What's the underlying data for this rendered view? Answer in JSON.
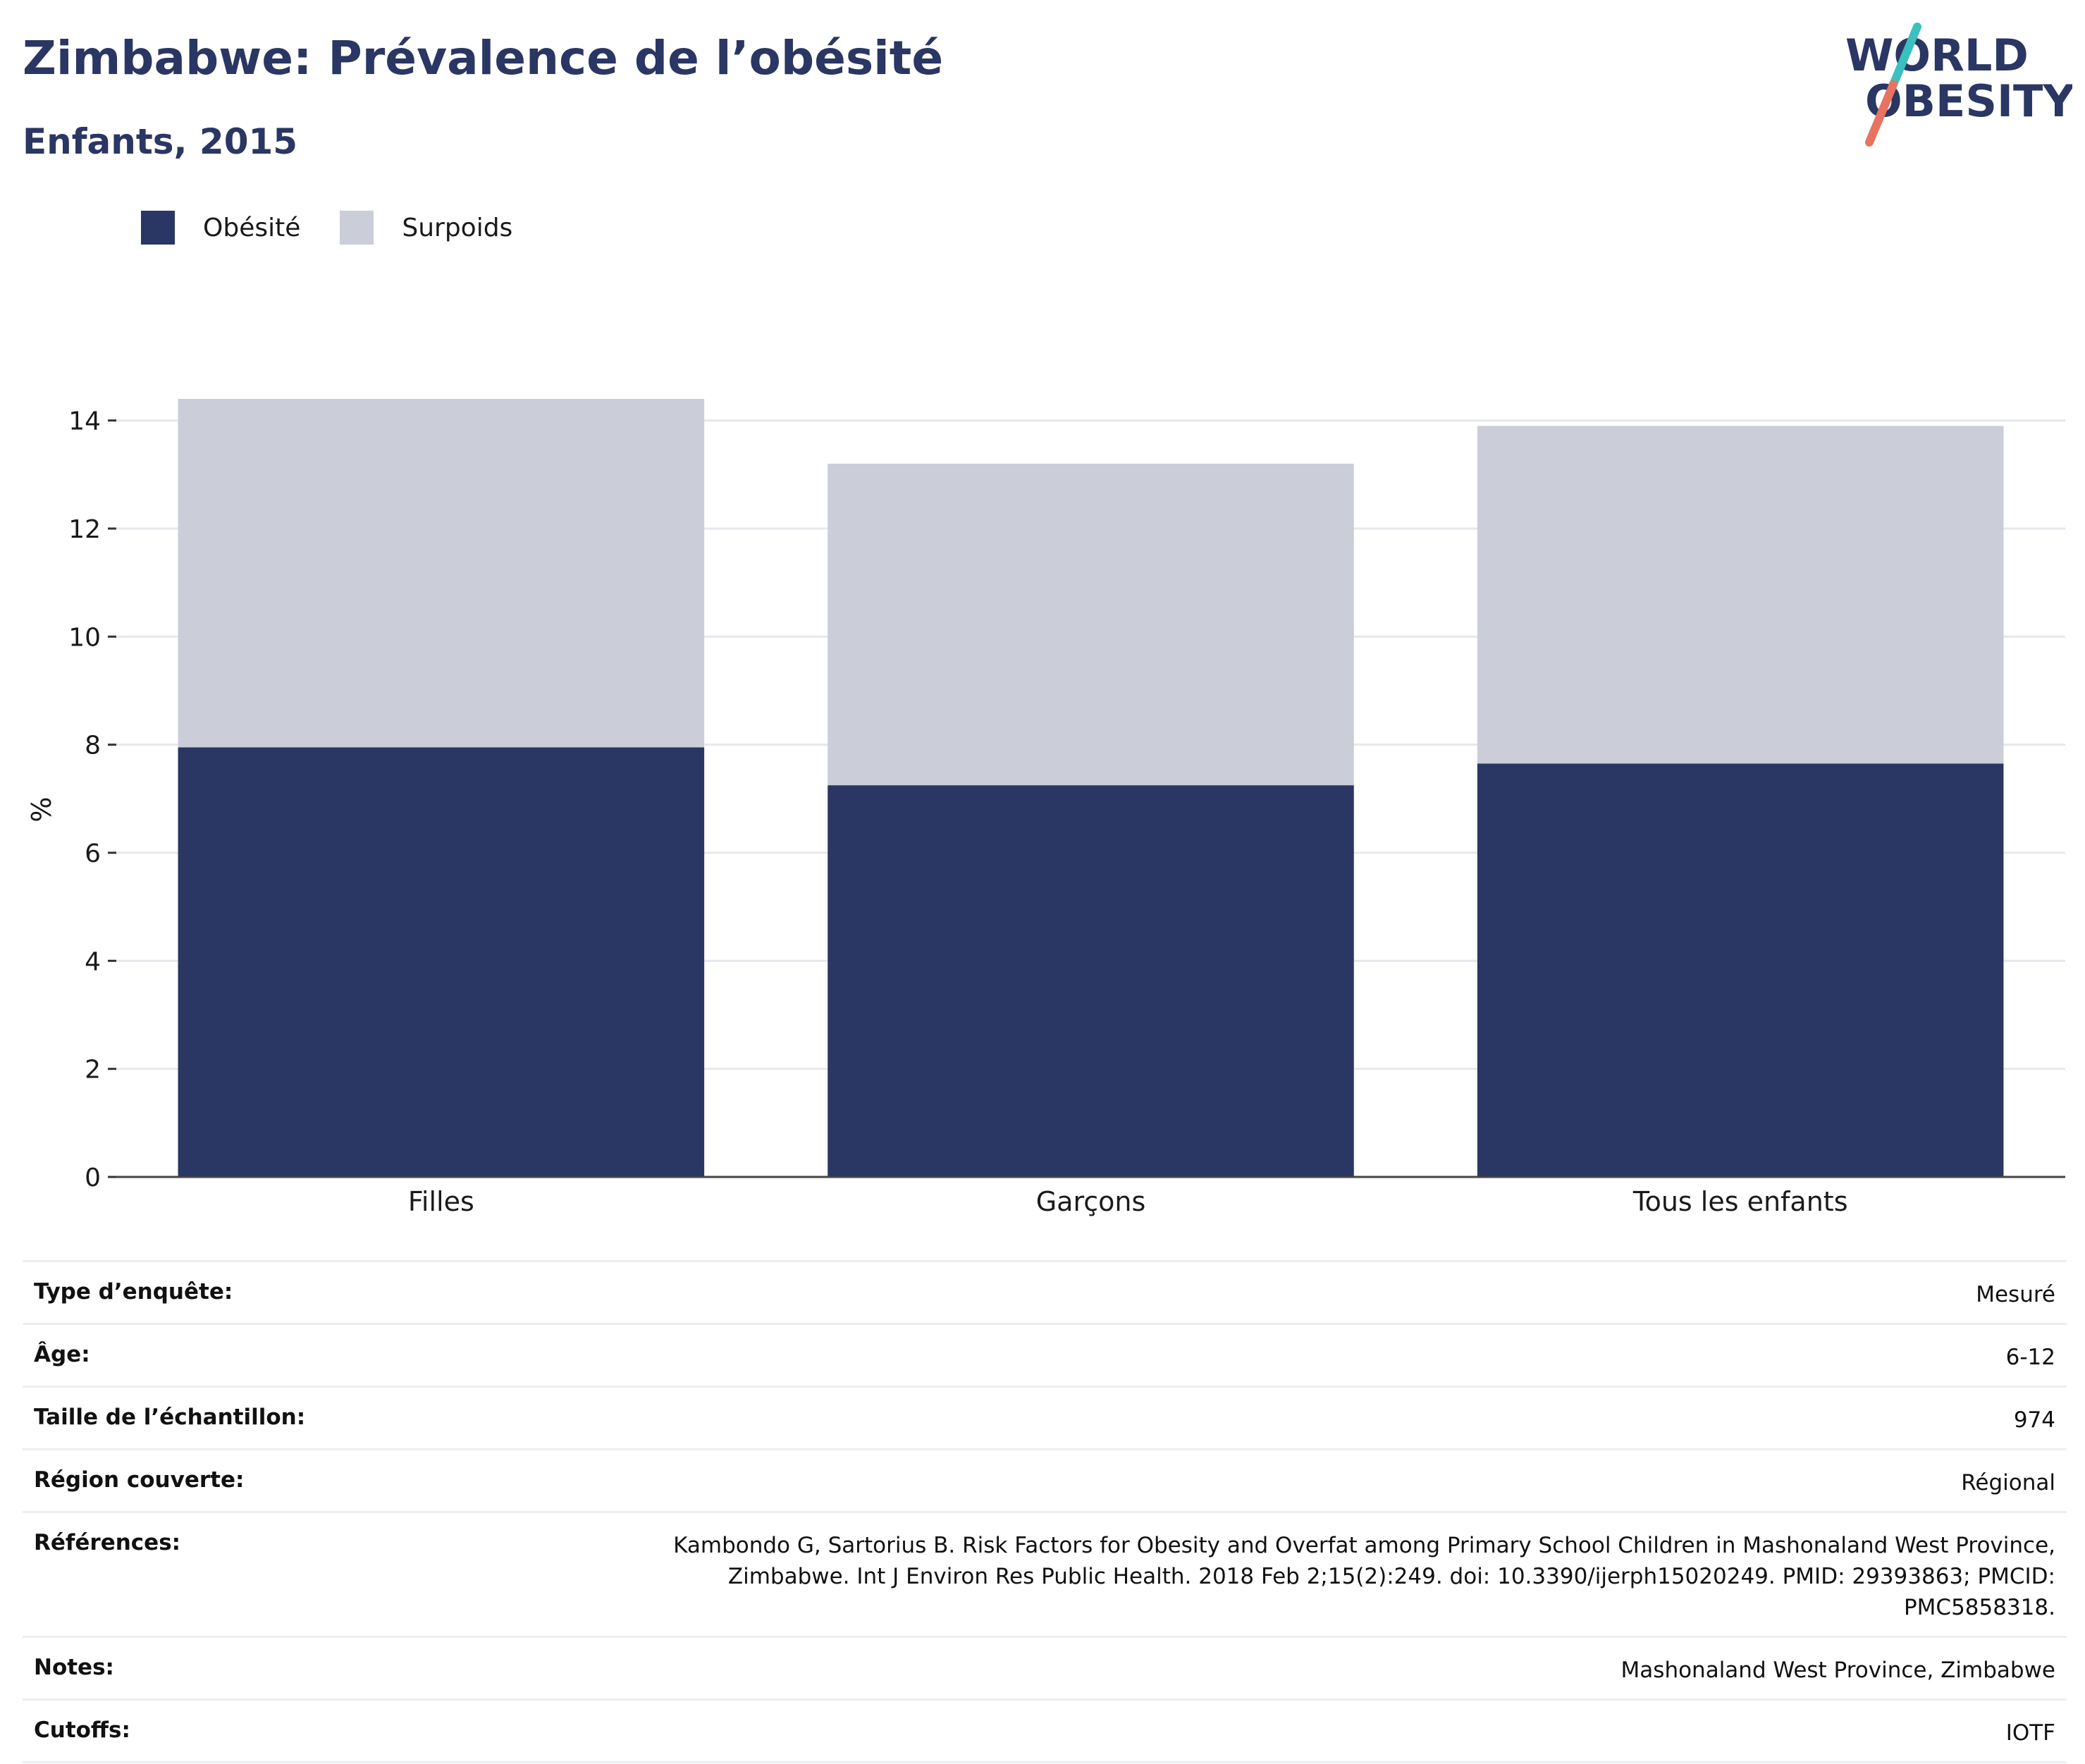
{
  "header": {
    "title": "Zimbabwe: Prévalence de l’obésité",
    "subtitle": "Enfants, 2015",
    "logo_line1": "WORLD",
    "logo_line2": "OBESITY"
  },
  "colors": {
    "obesity": "#2a3663",
    "overweight": "#cbcdd8",
    "logo_teal": "#3cbfbf",
    "logo_coral": "#e8735f"
  },
  "chart_data": {
    "type": "bar",
    "stacked": true,
    "categories": [
      "Filles",
      "Garçons",
      "Tous les enfants"
    ],
    "series": [
      {
        "name": "Obésité",
        "values": [
          7.95,
          7.25,
          7.65
        ]
      },
      {
        "name": "Surpoids",
        "values": [
          6.45,
          5.95,
          6.25
        ]
      }
    ],
    "ylabel": "%",
    "ylim": [
      0,
      15
    ],
    "yticks": [
      0,
      2,
      4,
      6,
      8,
      10,
      12,
      14
    ],
    "grid": true,
    "legend_position": "top-left"
  },
  "meta": {
    "rows": [
      {
        "label": "Type d’enquête:",
        "value": "Mesuré"
      },
      {
        "label": "Âge:",
        "value": "6-12"
      },
      {
        "label": "Taille de l’échantillon:",
        "value": "974"
      },
      {
        "label": "Région couverte:",
        "value": "Régional"
      },
      {
        "label": "Références:",
        "value": "Kambondo G, Sartorius B. Risk Factors for Obesity and Overfat among Primary School Children in Mashonaland West Province, Zimbabwe. Int J Environ Res Public Health. 2018 Feb 2;15(2):249. doi: 10.3390/ijerph15020249. PMID: 29393863; PMCID: PMC5858318."
      },
      {
        "label": "Notes:",
        "value": "Mashonaland West Province, Zimbabwe"
      },
      {
        "label": "Cutoffs:",
        "value": "IOTF"
      }
    ]
  }
}
